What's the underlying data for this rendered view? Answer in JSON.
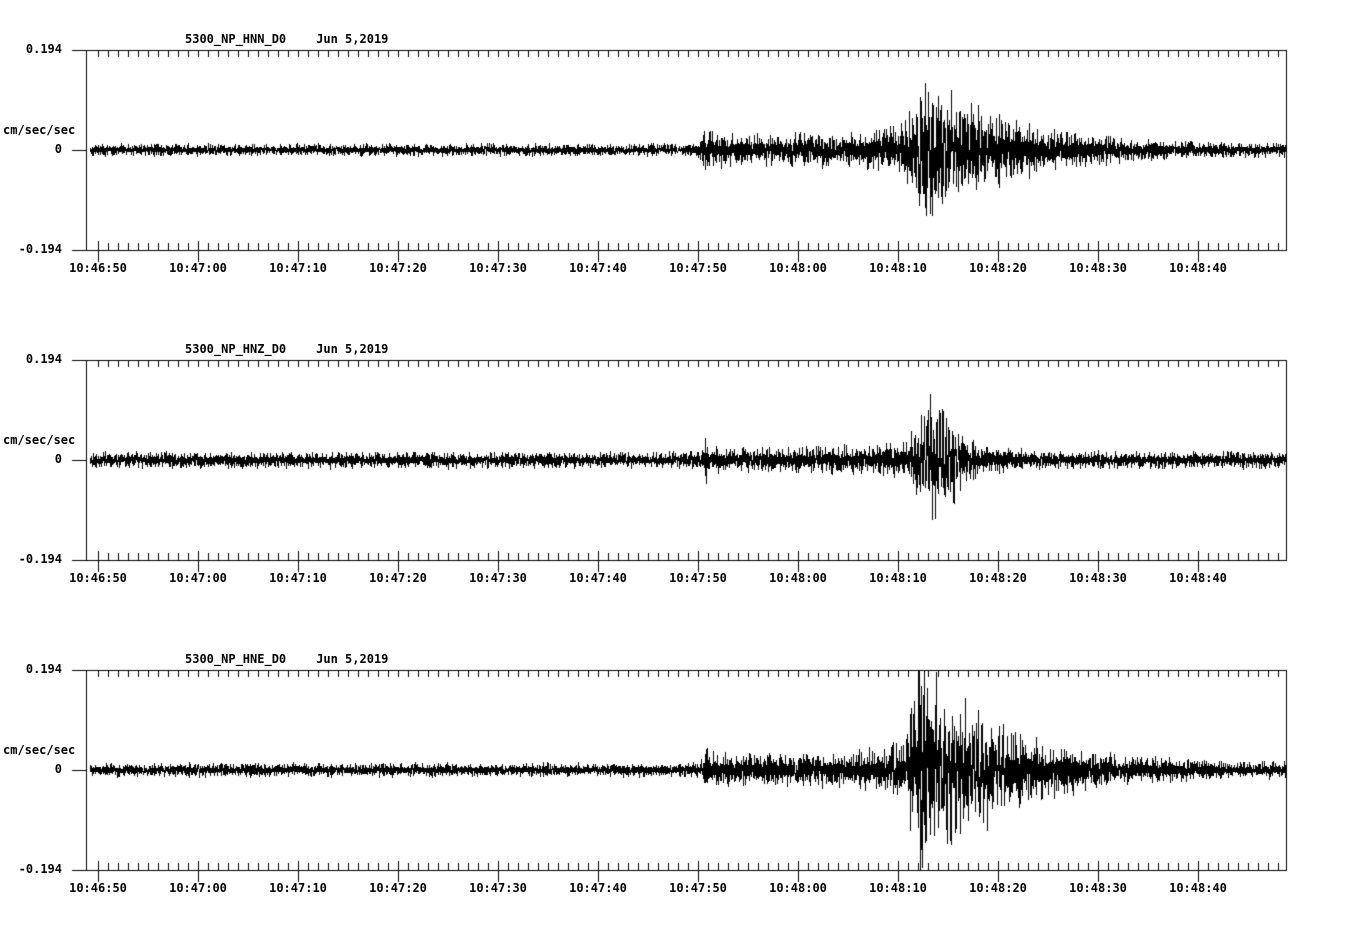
{
  "page": {
    "background_color": "#ffffff",
    "ink_color": "#000000",
    "description": "Three-channel strong-motion seismogram plot, black traces on white"
  },
  "chart_data": [
    {
      "type": "line",
      "title": "5300_NP_HNN_D0",
      "date": "Jun 5,2019",
      "ylabel": "cm/sec/sec",
      "ytick_labels": [
        "0.194",
        "0",
        "-0.194"
      ],
      "ytick_values": [
        0.194,
        0,
        -0.194
      ],
      "ylim": [
        -0.194,
        0.194
      ],
      "xtick_labels": [
        "10:46:50",
        "10:47:00",
        "10:47:10",
        "10:47:20",
        "10:47:30",
        "10:47:40",
        "10:47:50",
        "10:48:00",
        "10:48:10",
        "10:48:20",
        "10:48:30",
        "10:48:40"
      ],
      "x_span_seconds": 120,
      "first_tick_offset_seconds": 1.2,
      "major_tick_interval_seconds": 10,
      "minor_tick_interval_seconds": 1,
      "grid": false,
      "frame": true,
      "legend": "none",
      "trace_color": "#000000",
      "envelope_points_t_amp": [
        [
          0,
          0.01
        ],
        [
          59,
          0.01
        ],
        [
          61,
          0.012
        ],
        [
          61.8,
          0.03
        ],
        [
          63,
          0.027
        ],
        [
          67,
          0.024
        ],
        [
          71,
          0.026
        ],
        [
          75,
          0.028
        ],
        [
          79,
          0.031
        ],
        [
          81,
          0.038
        ],
        [
          82,
          0.055
        ],
        [
          83,
          0.072
        ],
        [
          84.3,
          0.118
        ],
        [
          85.5,
          0.1
        ],
        [
          86.5,
          0.088
        ],
        [
          88,
          0.07
        ],
        [
          90,
          0.058
        ],
        [
          93,
          0.044
        ],
        [
          96,
          0.034
        ],
        [
          100,
          0.026
        ],
        [
          104,
          0.019
        ],
        [
          109,
          0.014
        ],
        [
          114,
          0.012
        ],
        [
          120,
          0.012
        ]
      ],
      "spikes_t_value": [
        [
          84.2,
          0.112
        ],
        [
          84.6,
          -0.126
        ],
        [
          83.4,
          0.094
        ],
        [
          85.2,
          -0.092
        ]
      ],
      "oscillation": {
        "start": 81.5,
        "end": 90,
        "freq_hz": 2.6,
        "weight": 0.35
      },
      "p_arrival_label": "10:47:51",
      "s_peak_label": "10:48:13",
      "seed": 42
    },
    {
      "type": "line",
      "title": "5300_NP_HNZ_D0",
      "date": "Jun 5,2019",
      "ylabel": "cm/sec/sec",
      "ytick_labels": [
        "0.194",
        "0",
        "-0.194"
      ],
      "ytick_values": [
        0.194,
        0,
        -0.194
      ],
      "ylim": [
        -0.194,
        0.194
      ],
      "xtick_labels": [
        "10:46:50",
        "10:47:00",
        "10:47:10",
        "10:47:20",
        "10:47:30",
        "10:47:40",
        "10:47:50",
        "10:48:00",
        "10:48:10",
        "10:48:20",
        "10:48:30",
        "10:48:40"
      ],
      "x_span_seconds": 120,
      "first_tick_offset_seconds": 1.2,
      "major_tick_interval_seconds": 10,
      "minor_tick_interval_seconds": 1,
      "grid": false,
      "frame": true,
      "legend": "none",
      "trace_color": "#000000",
      "envelope_points_t_amp": [
        [
          0,
          0.013
        ],
        [
          60,
          0.013
        ],
        [
          61.5,
          0.016
        ],
        [
          61.9,
          0.036
        ],
        [
          62.5,
          0.024
        ],
        [
          64,
          0.019
        ],
        [
          70,
          0.02
        ],
        [
          76,
          0.022
        ],
        [
          80,
          0.024
        ],
        [
          82,
          0.032
        ],
        [
          83,
          0.05
        ],
        [
          84.6,
          0.08
        ],
        [
          85.5,
          0.072
        ],
        [
          86.5,
          0.052
        ],
        [
          88,
          0.034
        ],
        [
          90,
          0.024
        ],
        [
          93,
          0.017
        ],
        [
          97,
          0.014
        ],
        [
          120,
          0.013
        ]
      ],
      "spikes_t_value": [
        [
          62.0,
          -0.045
        ],
        [
          84.5,
          0.08
        ],
        [
          84.9,
          -0.076
        ],
        [
          85.3,
          0.07
        ]
      ],
      "oscillation": {
        "start": 82.5,
        "end": 88,
        "freq_hz": 3.2,
        "weight": 0.5
      },
      "p_arrival_label": "10:47:51",
      "s_peak_label": "10:48:13",
      "seed": 1337
    },
    {
      "type": "line",
      "title": "5300_NP_HNE_D0",
      "date": "Jun 5,2019",
      "ylabel": "cm/sec/sec",
      "ytick_labels": [
        "0.194",
        "0",
        "-0.194"
      ],
      "ytick_values": [
        0.194,
        0,
        -0.194
      ],
      "ylim": [
        -0.194,
        0.194
      ],
      "xtick_labels": [
        "10:46:50",
        "10:47:00",
        "10:47:10",
        "10:47:20",
        "10:47:30",
        "10:47:40",
        "10:47:50",
        "10:48:00",
        "10:48:10",
        "10:48:20",
        "10:48:30",
        "10:48:40"
      ],
      "x_span_seconds": 120,
      "first_tick_offset_seconds": 1.2,
      "major_tick_interval_seconds": 10,
      "minor_tick_interval_seconds": 1,
      "grid": false,
      "frame": true,
      "legend": "none",
      "trace_color": "#000000",
      "envelope_points_t_amp": [
        [
          0,
          0.011
        ],
        [
          60,
          0.011
        ],
        [
          61.5,
          0.013
        ],
        [
          61.9,
          0.032
        ],
        [
          63,
          0.027
        ],
        [
          67,
          0.025
        ],
        [
          71,
          0.026
        ],
        [
          75,
          0.028
        ],
        [
          79,
          0.033
        ],
        [
          81,
          0.042
        ],
        [
          82,
          0.06
        ],
        [
          83,
          0.12
        ],
        [
          83.4,
          0.185
        ],
        [
          84.3,
          0.125
        ],
        [
          85.5,
          0.105
        ],
        [
          87,
          0.092
        ],
        [
          89,
          0.08
        ],
        [
          91,
          0.065
        ],
        [
          93.5,
          0.055
        ],
        [
          96,
          0.045
        ],
        [
          99,
          0.035
        ],
        [
          102,
          0.027
        ],
        [
          106,
          0.021
        ],
        [
          110,
          0.017
        ],
        [
          115,
          0.014
        ],
        [
          120,
          0.014
        ]
      ],
      "spikes_t_value": [
        [
          83.2,
          0.194
        ],
        [
          83.5,
          0.162
        ],
        [
          83.8,
          -0.105
        ],
        [
          84.0,
          -0.135
        ],
        [
          87.4,
          -0.122
        ]
      ],
      "oscillation": {
        "start": 82,
        "end": 92,
        "freq_hz": 2.4,
        "weight": 0.35
      },
      "p_arrival_label": "10:47:51",
      "s_peak_label": "10:48:12",
      "seed": 2019
    }
  ]
}
